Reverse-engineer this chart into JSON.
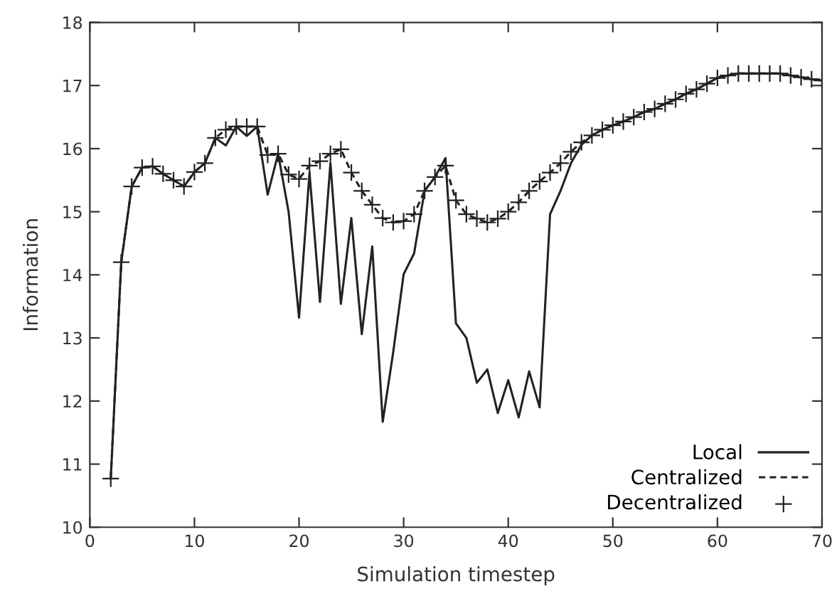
{
  "chart_data": {
    "type": "line",
    "xlabel": "Simulation timestep",
    "ylabel": "Information",
    "xlim": [
      0,
      70
    ],
    "ylim": [
      10,
      18
    ],
    "xticks": [
      0,
      10,
      20,
      30,
      40,
      50,
      60,
      70
    ],
    "yticks": [
      10,
      11,
      12,
      13,
      14,
      15,
      16,
      17,
      18
    ],
    "grid": false,
    "legend": "bottom right",
    "x": [
      2,
      3,
      4,
      5,
      6,
      7,
      8,
      9,
      10,
      11,
      12,
      13,
      14,
      15,
      16,
      17,
      18,
      19,
      20,
      21,
      22,
      23,
      24,
      25,
      26,
      27,
      28,
      29,
      30,
      31,
      32,
      33,
      34,
      35,
      36,
      37,
      38,
      39,
      40,
      41,
      42,
      43,
      44,
      45,
      46,
      47,
      48,
      49,
      50,
      51,
      52,
      53,
      54,
      55,
      56,
      57,
      58,
      59,
      60,
      61,
      62,
      63,
      64,
      65,
      66,
      67,
      68,
      69,
      70
    ],
    "series": [
      {
        "name": "Local",
        "line_style": "solid",
        "marker": "none",
        "color": "#222222",
        "values": [
          10.77,
          14.2,
          15.4,
          15.7,
          15.72,
          15.6,
          15.5,
          15.4,
          15.63,
          15.77,
          16.17,
          16.05,
          16.35,
          16.2,
          16.35,
          15.27,
          15.92,
          15.0,
          13.32,
          15.62,
          13.57,
          15.77,
          13.54,
          14.9,
          13.06,
          14.45,
          11.67,
          12.77,
          14.01,
          14.34,
          15.33,
          15.55,
          15.85,
          13.23,
          13.0,
          12.29,
          12.5,
          11.81,
          12.33,
          11.74,
          12.47,
          11.9,
          14.96,
          15.33,
          15.77,
          16.06,
          16.21,
          16.3,
          16.37,
          16.43,
          16.5,
          16.58,
          16.63,
          16.71,
          16.78,
          16.87,
          16.94,
          17.03,
          17.12,
          17.16,
          17.19,
          17.19,
          17.19,
          17.19,
          17.19,
          17.16,
          17.13,
          17.1,
          17.08
        ]
      },
      {
        "name": "Centralized",
        "line_style": "dashed",
        "marker": "none",
        "color": "#222222",
        "values": [
          10.77,
          14.2,
          15.4,
          15.7,
          15.72,
          15.6,
          15.5,
          15.4,
          15.63,
          15.77,
          16.17,
          16.3,
          16.35,
          16.35,
          16.35,
          15.9,
          15.92,
          15.59,
          15.52,
          15.73,
          15.8,
          15.92,
          15.99,
          15.62,
          15.33,
          15.11,
          14.9,
          14.83,
          14.85,
          14.96,
          15.33,
          15.55,
          15.73,
          15.18,
          14.96,
          14.89,
          14.83,
          14.89,
          15.0,
          15.15,
          15.33,
          15.48,
          15.62,
          15.77,
          15.95,
          16.1,
          16.21,
          16.3,
          16.37,
          16.43,
          16.5,
          16.58,
          16.63,
          16.71,
          16.78,
          16.87,
          16.94,
          17.03,
          17.12,
          17.16,
          17.19,
          17.19,
          17.19,
          17.19,
          17.19,
          17.16,
          17.13,
          17.1,
          17.08
        ]
      },
      {
        "name": "Decentralized",
        "type": "scatter",
        "marker": "cross",
        "color": "#222222",
        "values": [
          10.77,
          14.2,
          15.4,
          15.7,
          15.72,
          15.6,
          15.5,
          15.4,
          15.63,
          15.77,
          16.17,
          16.3,
          16.35,
          16.35,
          16.35,
          15.9,
          15.92,
          15.59,
          15.52,
          15.73,
          15.8,
          15.92,
          15.99,
          15.62,
          15.33,
          15.11,
          14.9,
          14.83,
          14.85,
          14.96,
          15.33,
          15.55,
          15.73,
          15.18,
          14.96,
          14.89,
          14.83,
          14.89,
          15.0,
          15.15,
          15.33,
          15.48,
          15.62,
          15.77,
          15.95,
          16.1,
          16.21,
          16.3,
          16.37,
          16.43,
          16.5,
          16.58,
          16.63,
          16.71,
          16.78,
          16.87,
          16.94,
          17.03,
          17.12,
          17.16,
          17.19,
          17.19,
          17.19,
          17.19,
          17.19,
          17.16,
          17.13,
          17.1,
          17.08
        ]
      }
    ]
  }
}
